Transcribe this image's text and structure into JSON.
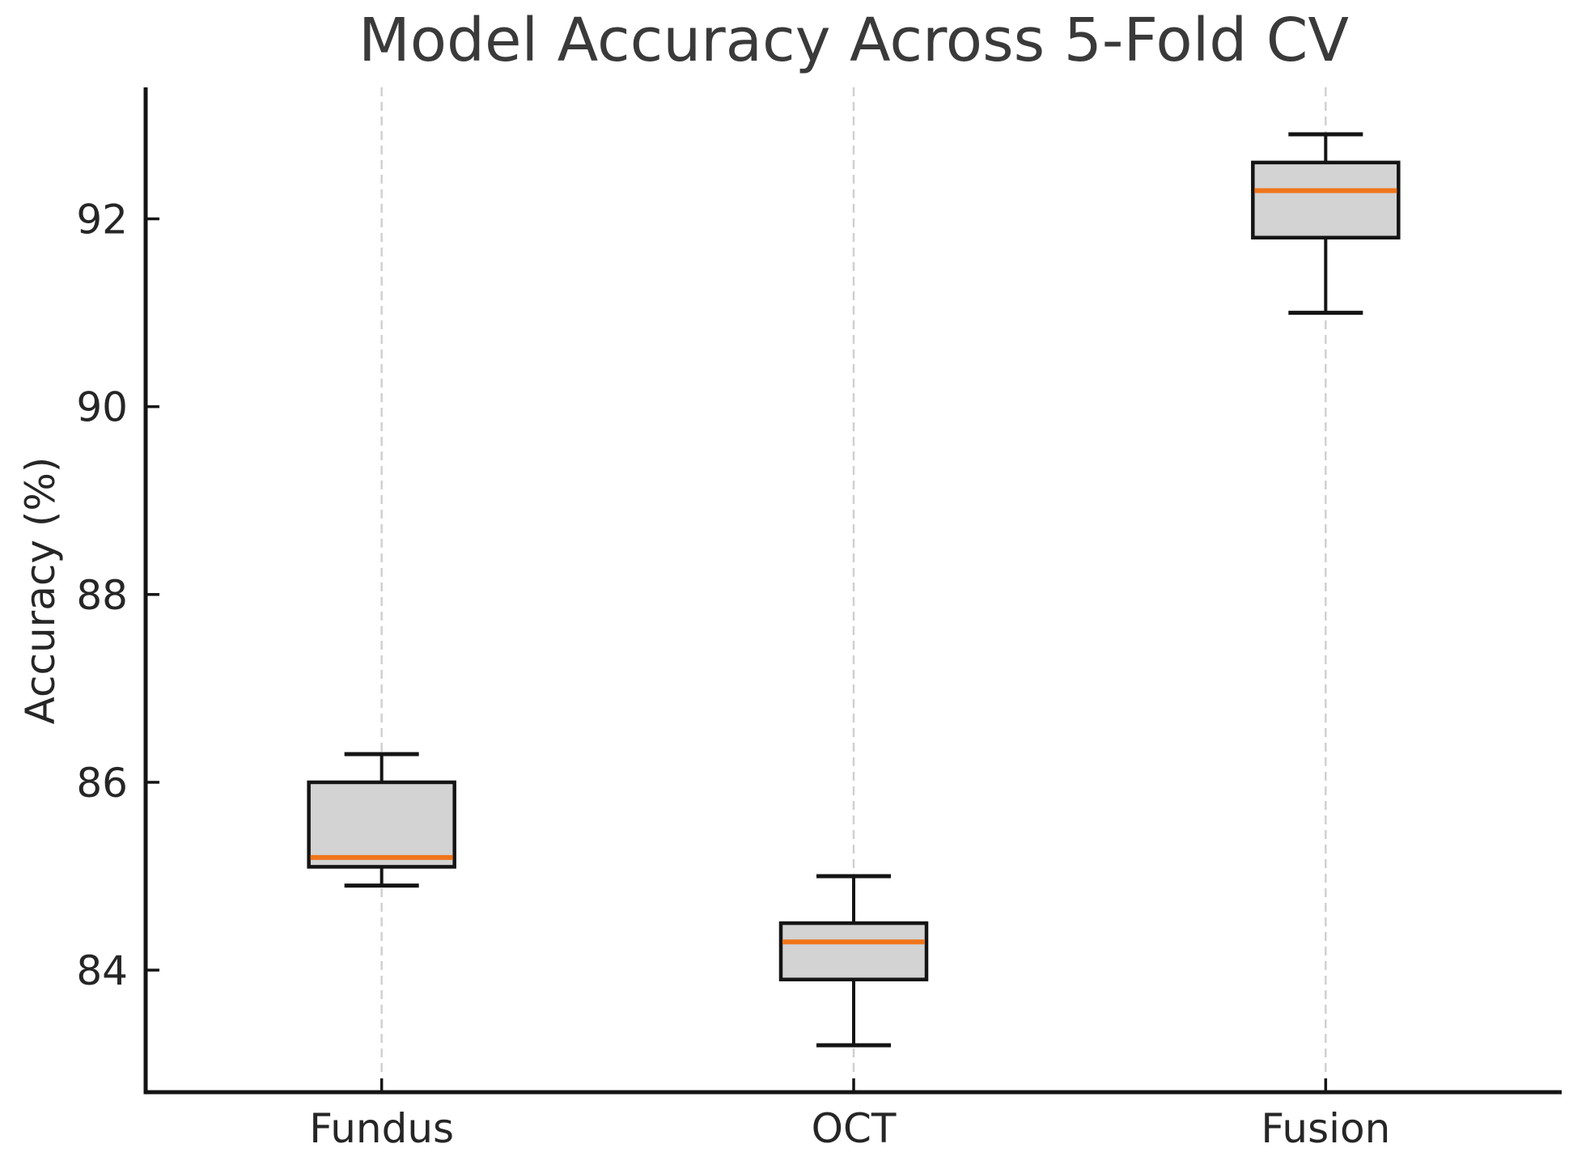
{
  "figure": {
    "title": "Model Accuracy Across 5-Fold CV",
    "ylabel": "Accuracy (%)"
  },
  "chart_data": {
    "type": "boxplot",
    "title": "Model Accuracy Across 5-Fold CV",
    "xlabel": "",
    "ylabel": "Accuracy (%)",
    "categories": [
      "Fundus",
      "OCT",
      "Fusion"
    ],
    "yticks": [
      84,
      86,
      88,
      90,
      92
    ],
    "ylim": [
      82.7,
      93.4
    ],
    "grid": {
      "axis": "x",
      "style": "dashed",
      "visible": true
    },
    "legend": "none",
    "series": [
      {
        "name": "Fundus",
        "whisker_low": 84.9,
        "q1": 85.1,
        "median": 85.2,
        "q3": 86.0,
        "whisker_high": 86.3
      },
      {
        "name": "OCT",
        "whisker_low": 83.2,
        "q1": 83.9,
        "median": 84.3,
        "q3": 84.5,
        "whisker_high": 85.0
      },
      {
        "name": "Fusion",
        "whisker_low": 91.0,
        "q1": 91.8,
        "median": 92.3,
        "q3": 92.6,
        "whisker_high": 92.9
      }
    ],
    "colors": {
      "box_fill": "#d3d3d3",
      "box_edge": "#141414",
      "median": "#f0751a",
      "whisker": "#141414",
      "cap": "#141414",
      "grid": "#d0d0d0",
      "spine": "#141414",
      "title_text": "#3a3a3a",
      "tick_text": "#262626"
    }
  }
}
